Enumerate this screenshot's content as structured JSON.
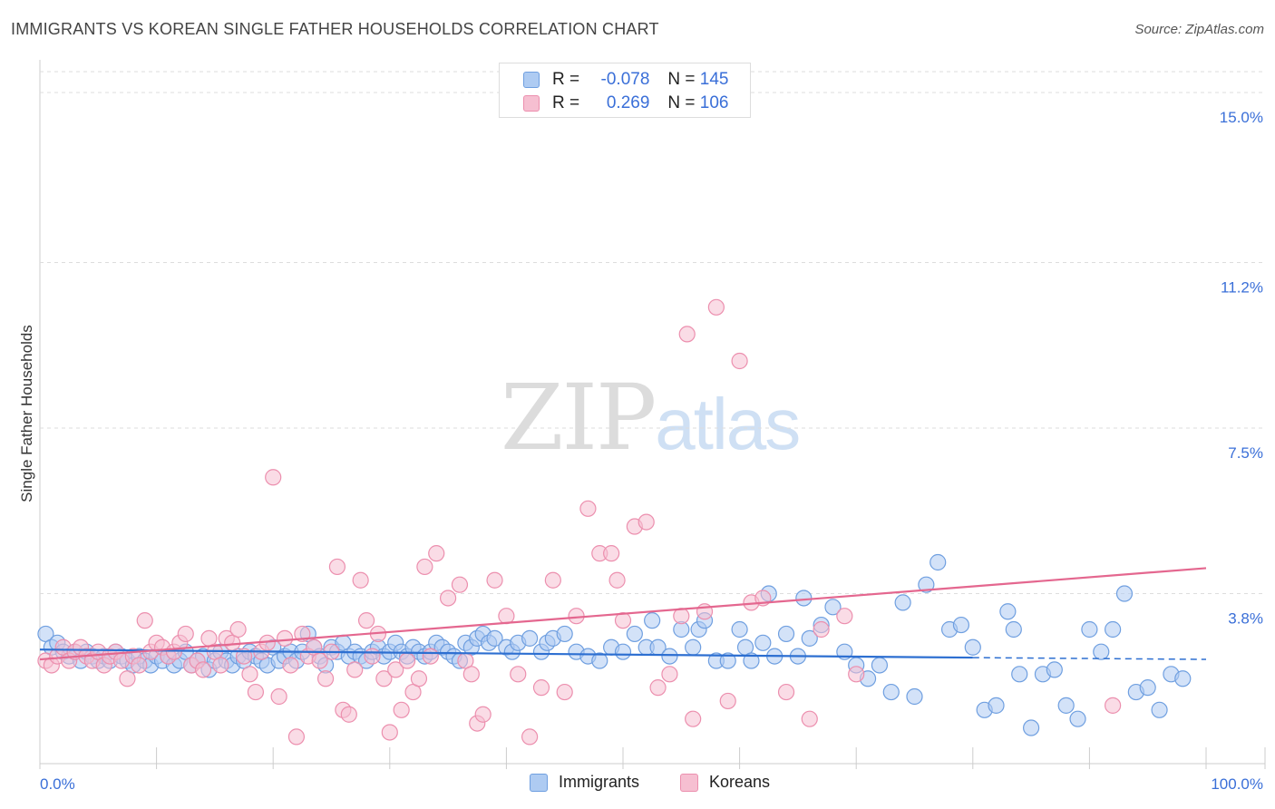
{
  "title": "IMMIGRANTS VS KOREAN SINGLE FATHER HOUSEHOLDS CORRELATION CHART",
  "source": "Source: ZipAtlas.com",
  "watermark": {
    "zip": "ZIP",
    "atlas": "atlas"
  },
  "legend": {
    "rows": [
      {
        "r_label": "R =",
        "r_value": "-0.078",
        "n_label": "N =",
        "n_value": "145"
      },
      {
        "r_label": "R =",
        "r_value": "0.269",
        "n_label": "N =",
        "n_value": "106"
      }
    ]
  },
  "bottom_legend": {
    "immigrants": "Immigrants",
    "koreans": "Koreans"
  },
  "colors": {
    "immigrants_fill": "#aecbf2",
    "immigrants_stroke": "#6f9fe0",
    "immigrants_line": "#2d6fd1",
    "koreans_fill": "#f6bfd1",
    "koreans_stroke": "#ec8fae",
    "koreans_line": "#e4678f",
    "tick_label": "#3a6fd8",
    "grid": "#dddddd"
  },
  "chart_data": {
    "type": "scatter",
    "title": "IMMIGRANTS VS KOREAN SINGLE FATHER HOUSEHOLDS CORRELATION CHART",
    "xlabel": "",
    "ylabel": "Single Father Households",
    "xlim": [
      0,
      100
    ],
    "ylim": [
      0,
      15.0
    ],
    "x_tick_labels": [
      "0.0%",
      "100.0%"
    ],
    "y_ticks": [
      {
        "value": 3.8,
        "label": "3.8%"
      },
      {
        "value": 7.5,
        "label": "7.5%"
      },
      {
        "value": 11.2,
        "label": "11.2%"
      },
      {
        "value": 15.0,
        "label": "15.0%"
      }
    ],
    "trend_lines": [
      {
        "series": "Immigrants",
        "x": [
          0,
          80
        ],
        "y": [
          2.55,
          2.37
        ],
        "dashed_to": [
          100,
          2.33
        ]
      },
      {
        "series": "Koreans",
        "x": [
          0,
          100
        ],
        "y": [
          2.33,
          4.37
        ]
      }
    ],
    "series": [
      {
        "name": "Immigrants",
        "points": [
          [
            0.5,
            2.9
          ],
          [
            1,
            2.6
          ],
          [
            1.5,
            2.7
          ],
          [
            2,
            2.5
          ],
          [
            2.5,
            2.4
          ],
          [
            3,
            2.5
          ],
          [
            3.5,
            2.3
          ],
          [
            4,
            2.5
          ],
          [
            4.5,
            2.4
          ],
          [
            5,
            2.3
          ],
          [
            5.5,
            2.4
          ],
          [
            6,
            2.3
          ],
          [
            6.5,
            2.5
          ],
          [
            7,
            2.4
          ],
          [
            7.5,
            2.3
          ],
          [
            8,
            2.2
          ],
          [
            8.5,
            2.4
          ],
          [
            9,
            2.3
          ],
          [
            9.5,
            2.2
          ],
          [
            10,
            2.4
          ],
          [
            10.5,
            2.3
          ],
          [
            11,
            2.4
          ],
          [
            11.5,
            2.2
          ],
          [
            12,
            2.3
          ],
          [
            12.5,
            2.5
          ],
          [
            13,
            2.2
          ],
          [
            13.5,
            2.3
          ],
          [
            14,
            2.4
          ],
          [
            14.5,
            2.1
          ],
          [
            15,
            2.3
          ],
          [
            15.5,
            2.5
          ],
          [
            16,
            2.3
          ],
          [
            16.5,
            2.2
          ],
          [
            17,
            2.4
          ],
          [
            17.5,
            2.3
          ],
          [
            18,
            2.5
          ],
          [
            18.5,
            2.4
          ],
          [
            19,
            2.3
          ],
          [
            19.5,
            2.2
          ],
          [
            20,
            2.6
          ],
          [
            20.5,
            2.3
          ],
          [
            21,
            2.4
          ],
          [
            21.5,
            2.5
          ],
          [
            22,
            2.3
          ],
          [
            22.5,
            2.5
          ],
          [
            23,
            2.9
          ],
          [
            23.5,
            2.6
          ],
          [
            24,
            2.4
          ],
          [
            24.5,
            2.2
          ],
          [
            25,
            2.6
          ],
          [
            25.5,
            2.5
          ],
          [
            26,
            2.7
          ],
          [
            26.5,
            2.4
          ],
          [
            27,
            2.5
          ],
          [
            27.5,
            2.4
          ],
          [
            28,
            2.3
          ],
          [
            28.5,
            2.5
          ],
          [
            29,
            2.6
          ],
          [
            29.5,
            2.4
          ],
          [
            30,
            2.5
          ],
          [
            30.5,
            2.7
          ],
          [
            31,
            2.5
          ],
          [
            31.5,
            2.4
          ],
          [
            32,
            2.6
          ],
          [
            32.5,
            2.5
          ],
          [
            33,
            2.4
          ],
          [
            33.5,
            2.5
          ],
          [
            34,
            2.7
          ],
          [
            34.5,
            2.6
          ],
          [
            35,
            2.5
          ],
          [
            35.5,
            2.4
          ],
          [
            36,
            2.3
          ],
          [
            36.5,
            2.7
          ],
          [
            37,
            2.6
          ],
          [
            37.5,
            2.8
          ],
          [
            38,
            2.9
          ],
          [
            38.5,
            2.7
          ],
          [
            39,
            2.8
          ],
          [
            40,
            2.6
          ],
          [
            40.5,
            2.5
          ],
          [
            41,
            2.7
          ],
          [
            42,
            2.8
          ],
          [
            43,
            2.5
          ],
          [
            43.5,
            2.7
          ],
          [
            44,
            2.8
          ],
          [
            45,
            2.9
          ],
          [
            46,
            2.5
          ],
          [
            47,
            2.4
          ],
          [
            48,
            2.3
          ],
          [
            49,
            2.6
          ],
          [
            50,
            2.5
          ],
          [
            51,
            2.9
          ],
          [
            52,
            2.6
          ],
          [
            52.5,
            3.2
          ],
          [
            53,
            2.6
          ],
          [
            54,
            2.4
          ],
          [
            55,
            3.0
          ],
          [
            56,
            2.6
          ],
          [
            56.5,
            3.0
          ],
          [
            57,
            3.2
          ],
          [
            58,
            2.3
          ],
          [
            59,
            2.3
          ],
          [
            60,
            3.0
          ],
          [
            60.5,
            2.6
          ],
          [
            61,
            2.3
          ],
          [
            62,
            2.7
          ],
          [
            62.5,
            3.8
          ],
          [
            63,
            2.4
          ],
          [
            64,
            2.9
          ],
          [
            65,
            2.4
          ],
          [
            65.5,
            3.7
          ],
          [
            66,
            2.8
          ],
          [
            67,
            3.1
          ],
          [
            68,
            3.5
          ],
          [
            69,
            2.5
          ],
          [
            70,
            2.2
          ],
          [
            71,
            1.9
          ],
          [
            72,
            2.2
          ],
          [
            73,
            1.6
          ],
          [
            74,
            3.6
          ],
          [
            75,
            1.5
          ],
          [
            76,
            4.0
          ],
          [
            77,
            4.5
          ],
          [
            78,
            3.0
          ],
          [
            79,
            3.1
          ],
          [
            80,
            2.6
          ],
          [
            81,
            1.2
          ],
          [
            82,
            1.3
          ],
          [
            83,
            3.4
          ],
          [
            83.5,
            3.0
          ],
          [
            84,
            2.0
          ],
          [
            85,
            0.8
          ],
          [
            86,
            2.0
          ],
          [
            87,
            2.1
          ],
          [
            88,
            1.3
          ],
          [
            89,
            1.0
          ],
          [
            90,
            3.0
          ],
          [
            91,
            2.5
          ],
          [
            92,
            3.0
          ],
          [
            93,
            3.8
          ],
          [
            94,
            1.6
          ],
          [
            95,
            1.7
          ],
          [
            96,
            1.2
          ],
          [
            97,
            2.0
          ],
          [
            98,
            1.9
          ]
        ]
      },
      {
        "name": "Koreans",
        "points": [
          [
            0.5,
            2.3
          ],
          [
            1,
            2.2
          ],
          [
            1.5,
            2.4
          ],
          [
            2,
            2.6
          ],
          [
            2.5,
            2.3
          ],
          [
            3,
            2.5
          ],
          [
            3.5,
            2.6
          ],
          [
            4,
            2.4
          ],
          [
            4.5,
            2.3
          ],
          [
            5,
            2.5
          ],
          [
            5.5,
            2.2
          ],
          [
            6,
            2.4
          ],
          [
            6.5,
            2.5
          ],
          [
            7,
            2.3
          ],
          [
            7.5,
            1.9
          ],
          [
            8,
            2.4
          ],
          [
            8.5,
            2.2
          ],
          [
            9,
            3.2
          ],
          [
            9.5,
            2.5
          ],
          [
            10,
            2.7
          ],
          [
            10.5,
            2.6
          ],
          [
            11,
            2.4
          ],
          [
            11.5,
            2.5
          ],
          [
            12,
            2.7
          ],
          [
            12.5,
            2.9
          ],
          [
            13,
            2.2
          ],
          [
            13.5,
            2.3
          ],
          [
            14,
            2.1
          ],
          [
            14.5,
            2.8
          ],
          [
            15,
            2.5
          ],
          [
            15.5,
            2.2
          ],
          [
            16,
            2.8
          ],
          [
            16.5,
            2.7
          ],
          [
            17,
            3.0
          ],
          [
            17.5,
            2.4
          ],
          [
            18,
            2.0
          ],
          [
            18.5,
            1.6
          ],
          [
            19,
            2.5
          ],
          [
            19.5,
            2.7
          ],
          [
            20,
            6.4
          ],
          [
            20.5,
            1.5
          ],
          [
            21,
            2.8
          ],
          [
            21.5,
            2.2
          ],
          [
            22,
            0.6
          ],
          [
            22.5,
            2.9
          ],
          [
            23,
            2.4
          ],
          [
            23.5,
            2.6
          ],
          [
            24,
            2.3
          ],
          [
            24.5,
            1.9
          ],
          [
            25,
            2.5
          ],
          [
            25.5,
            4.4
          ],
          [
            26,
            1.2
          ],
          [
            26.5,
            1.1
          ],
          [
            27,
            2.1
          ],
          [
            27.5,
            4.1
          ],
          [
            28,
            3.2
          ],
          [
            28.5,
            2.4
          ],
          [
            29,
            2.9
          ],
          [
            29.5,
            1.9
          ],
          [
            30,
            0.7
          ],
          [
            30.5,
            2.1
          ],
          [
            31,
            1.2
          ],
          [
            31.5,
            2.3
          ],
          [
            32,
            1.6
          ],
          [
            32.5,
            1.9
          ],
          [
            33,
            4.4
          ],
          [
            33.5,
            2.4
          ],
          [
            34,
            4.7
          ],
          [
            35,
            3.7
          ],
          [
            36,
            4.0
          ],
          [
            36.5,
            2.3
          ],
          [
            37,
            2.0
          ],
          [
            37.5,
            0.9
          ],
          [
            38,
            1.1
          ],
          [
            39,
            4.1
          ],
          [
            40,
            3.3
          ],
          [
            41,
            2.0
          ],
          [
            42,
            0.6
          ],
          [
            43,
            1.7
          ],
          [
            44,
            4.1
          ],
          [
            45,
            1.6
          ],
          [
            46,
            3.3
          ],
          [
            47,
            5.7
          ],
          [
            48,
            4.7
          ],
          [
            49,
            4.7
          ],
          [
            49.5,
            4.1
          ],
          [
            50,
            3.2
          ],
          [
            51,
            5.3
          ],
          [
            52,
            5.4
          ],
          [
            53,
            1.7
          ],
          [
            54,
            2.0
          ],
          [
            55,
            3.3
          ],
          [
            55.5,
            9.6
          ],
          [
            56,
            1.0
          ],
          [
            57,
            3.4
          ],
          [
            58,
            10.2
          ],
          [
            59,
            1.4
          ],
          [
            60,
            9.0
          ],
          [
            61,
            3.6
          ],
          [
            62,
            3.7
          ],
          [
            64,
            1.6
          ],
          [
            66,
            1.0
          ],
          [
            67,
            3.0
          ],
          [
            69,
            3.3
          ],
          [
            70,
            2.0
          ],
          [
            92,
            1.3
          ]
        ]
      }
    ]
  }
}
